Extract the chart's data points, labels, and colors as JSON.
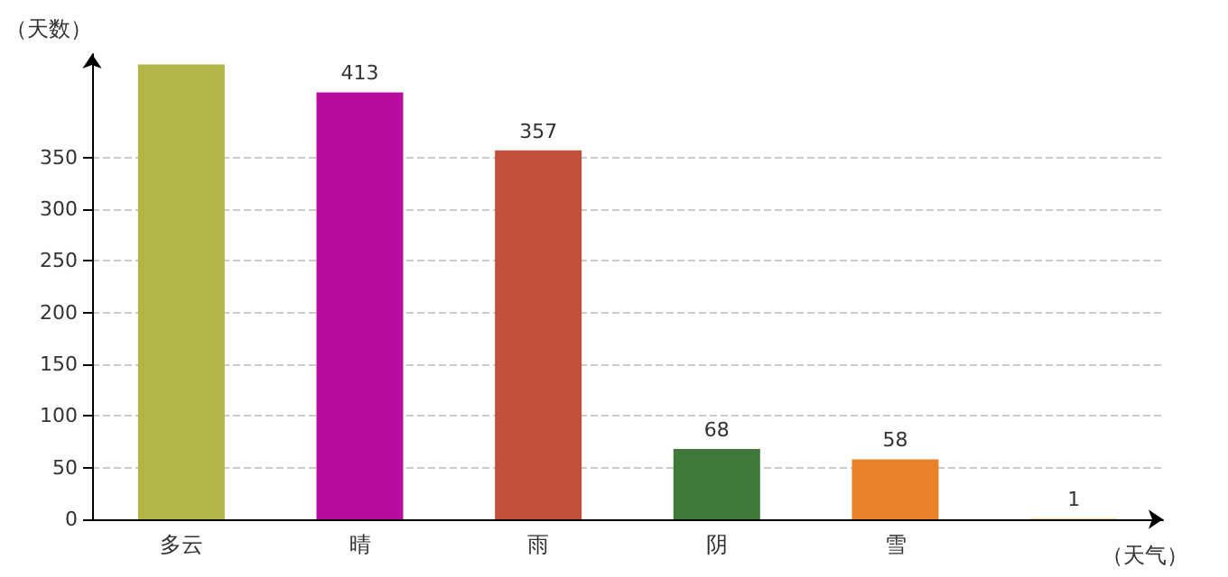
{
  "chart_data": {
    "type": "bar",
    "xlabel": "（天气）",
    "ylabel": "（天数）",
    "categories": [
      "多云",
      "晴",
      "雨",
      "阴",
      "雪",
      null
    ],
    "values": [
      440,
      413,
      357,
      68,
      58,
      1
    ],
    "value_labels": [
      null,
      "413",
      "357",
      "68",
      "58",
      "1"
    ],
    "colors": [
      "#b1b646",
      "#b80c9c",
      "#c0503b",
      "#3f7a3a",
      "#e6832a",
      "#f2d9a0"
    ],
    "ylim": [
      0,
      450
    ],
    "yticks": [
      0,
      50,
      100,
      150,
      200,
      250,
      300,
      350
    ],
    "grid": "y"
  }
}
